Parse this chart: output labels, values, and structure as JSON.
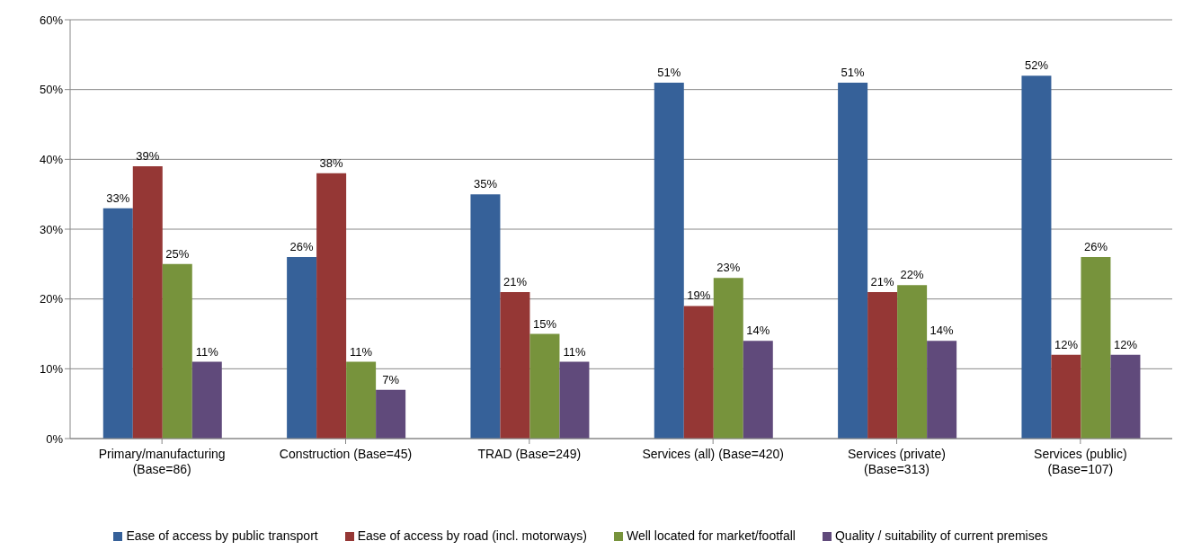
{
  "chart_data": {
    "type": "bar",
    "categories": [
      "Primary/manufacturing (Base=86)",
      "Construction (Base=45)",
      "TRAD (Base=249)",
      "Services (all) (Base=420)",
      "Services (private) (Base=313)",
      "Services (public) (Base=107)"
    ],
    "series": [
      {
        "name": "Ease of access by public transport",
        "color": "#366199",
        "values": [
          33,
          26,
          35,
          51,
          51,
          52
        ],
        "value_labels": [
          "33%",
          "26%",
          "35%",
          "51%",
          "51%",
          "52%"
        ]
      },
      {
        "name": "Ease of access by road (incl. motorways)",
        "color": "#953735",
        "values": [
          39,
          38,
          21,
          19,
          21,
          12
        ],
        "value_labels": [
          "39%",
          "38%",
          "21%",
          "19%",
          "21%",
          "12%"
        ]
      },
      {
        "name": "Well located for market/footfall",
        "color": "#77933c",
        "values": [
          25,
          11,
          15,
          23,
          22,
          26
        ],
        "value_labels": [
          "25%",
          "11%",
          "15%",
          "23%",
          "22%",
          "26%"
        ]
      },
      {
        "name": "Quality / suitability of current premises",
        "color": "#604a7b",
        "values": [
          11,
          7,
          11,
          14,
          14,
          12
        ],
        "value_labels": [
          "11%",
          "7%",
          "11%",
          "14%",
          "14%",
          "12%"
        ]
      }
    ],
    "ylim": [
      0,
      60
    ],
    "yticks": [
      {
        "value": 0,
        "label": "0%"
      },
      {
        "value": 10,
        "label": "10%"
      },
      {
        "value": 20,
        "label": "20%"
      },
      {
        "value": 30,
        "label": "30%"
      },
      {
        "value": 40,
        "label": "40%"
      },
      {
        "value": 50,
        "label": "50%"
      },
      {
        "value": 60,
        "label": "60%"
      }
    ],
    "grid": "y",
    "legend": "bottom"
  }
}
